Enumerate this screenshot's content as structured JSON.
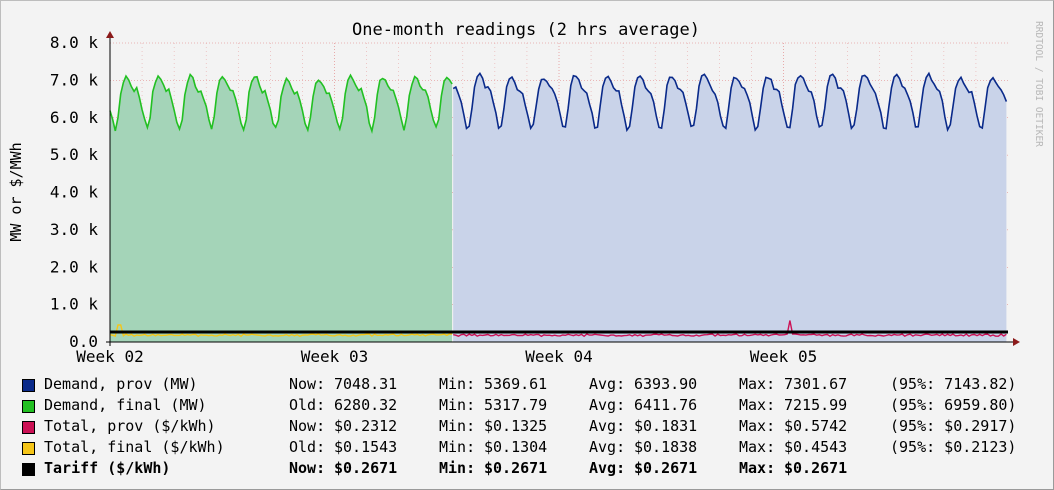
{
  "chart_data": {
    "type": "area",
    "title": "One-month readings (2 hrs average)",
    "ylabel": "MW or $/MWh",
    "watermark": "RRDTOOL / TOBI OETIKER",
    "ylim": [
      0,
      8000
    ],
    "y_ticks": [
      "0.0",
      "1.0 k",
      "2.0 k",
      "3.0 k",
      "4.0 k",
      "5.0 k",
      "6.0 k",
      "7.0 k",
      "8.0 k"
    ],
    "x_ticks": [
      "Week 02",
      "Week 03",
      "Week 04",
      "Week 05"
    ],
    "grid": true,
    "colors": {
      "demand_prov_line": "#0a2a8a",
      "demand_prov_fill": "#c9d3e9",
      "demand_final_line": "#22c022",
      "demand_final_fill": "#a4d4b8",
      "total_prov": "#cc1155",
      "total_final": "#f5c518",
      "tariff": "#000000"
    },
    "series": [
      {
        "name": "Demand, prov (MW)",
        "daily_profile": [
          6280,
          5800,
          5600,
          6000,
          6700,
          7050,
          7150,
          7100,
          6900,
          6750,
          6800,
          6500
        ],
        "weekend_scale": 0.95,
        "range_days": [
          10.7,
          28
        ]
      },
      {
        "name": "Demand, final (MW)",
        "daily_profile": [
          6250,
          5900,
          5700,
          6000,
          6650,
          6950,
          7100,
          7050,
          6850,
          6700,
          6750,
          6500
        ],
        "weekend_scale": 0.95,
        "range_days": [
          0,
          10.7
        ]
      },
      {
        "name": "Total, prov ($/kWh)",
        "typical": 183,
        "peak": 574,
        "peak_day": 21.2
      },
      {
        "name": "Total, final ($/kWh)",
        "typical": 184,
        "peak": 454,
        "peak_day": 0.3
      },
      {
        "name": "Tariff ($/kWh)",
        "value": 267.1
      }
    ],
    "legend": [
      {
        "color": "#0a2a8a",
        "label": "Demand, prov (MW)",
        "now_label": "Now:",
        "now": "7048.31",
        "min": "5369.61",
        "avg": "6393.90",
        "max": "7301.67",
        "p95": "(95%: 7143.82)",
        "bold": false
      },
      {
        "color": "#22c022",
        "label": "Demand, final (MW)",
        "now_label": "Old:",
        "now": "6280.32",
        "min": "5317.79",
        "avg": "6411.76",
        "max": "7215.99",
        "p95": "(95%: 6959.80)",
        "bold": false
      },
      {
        "color": "#cc1155",
        "label": "Total, prov ($/kWh)",
        "now_label": "Now:",
        "now": "$0.2312",
        "min": "$0.1325",
        "avg": "$0.1831",
        "max": "$0.5742",
        "p95": "(95%: $0.2917)",
        "bold": false
      },
      {
        "color": "#f5c518",
        "label": "Total, final ($/kWh)",
        "now_label": "Old:",
        "now": "$0.1543",
        "min": "$0.1304",
        "avg": "$0.1838",
        "max": "$0.4543",
        "p95": "(95%: $0.2123)",
        "bold": false
      },
      {
        "color": "#000000",
        "label": "Tariff ($/kWh)",
        "now_label": "Now:",
        "now": "$0.2671",
        "min": "$0.2671",
        "avg": "$0.2671",
        "max": "$0.2671",
        "p95": "",
        "bold": true
      }
    ],
    "stat_labels": {
      "min": "Min:",
      "avg": "Avg:",
      "max": "Max:"
    }
  }
}
